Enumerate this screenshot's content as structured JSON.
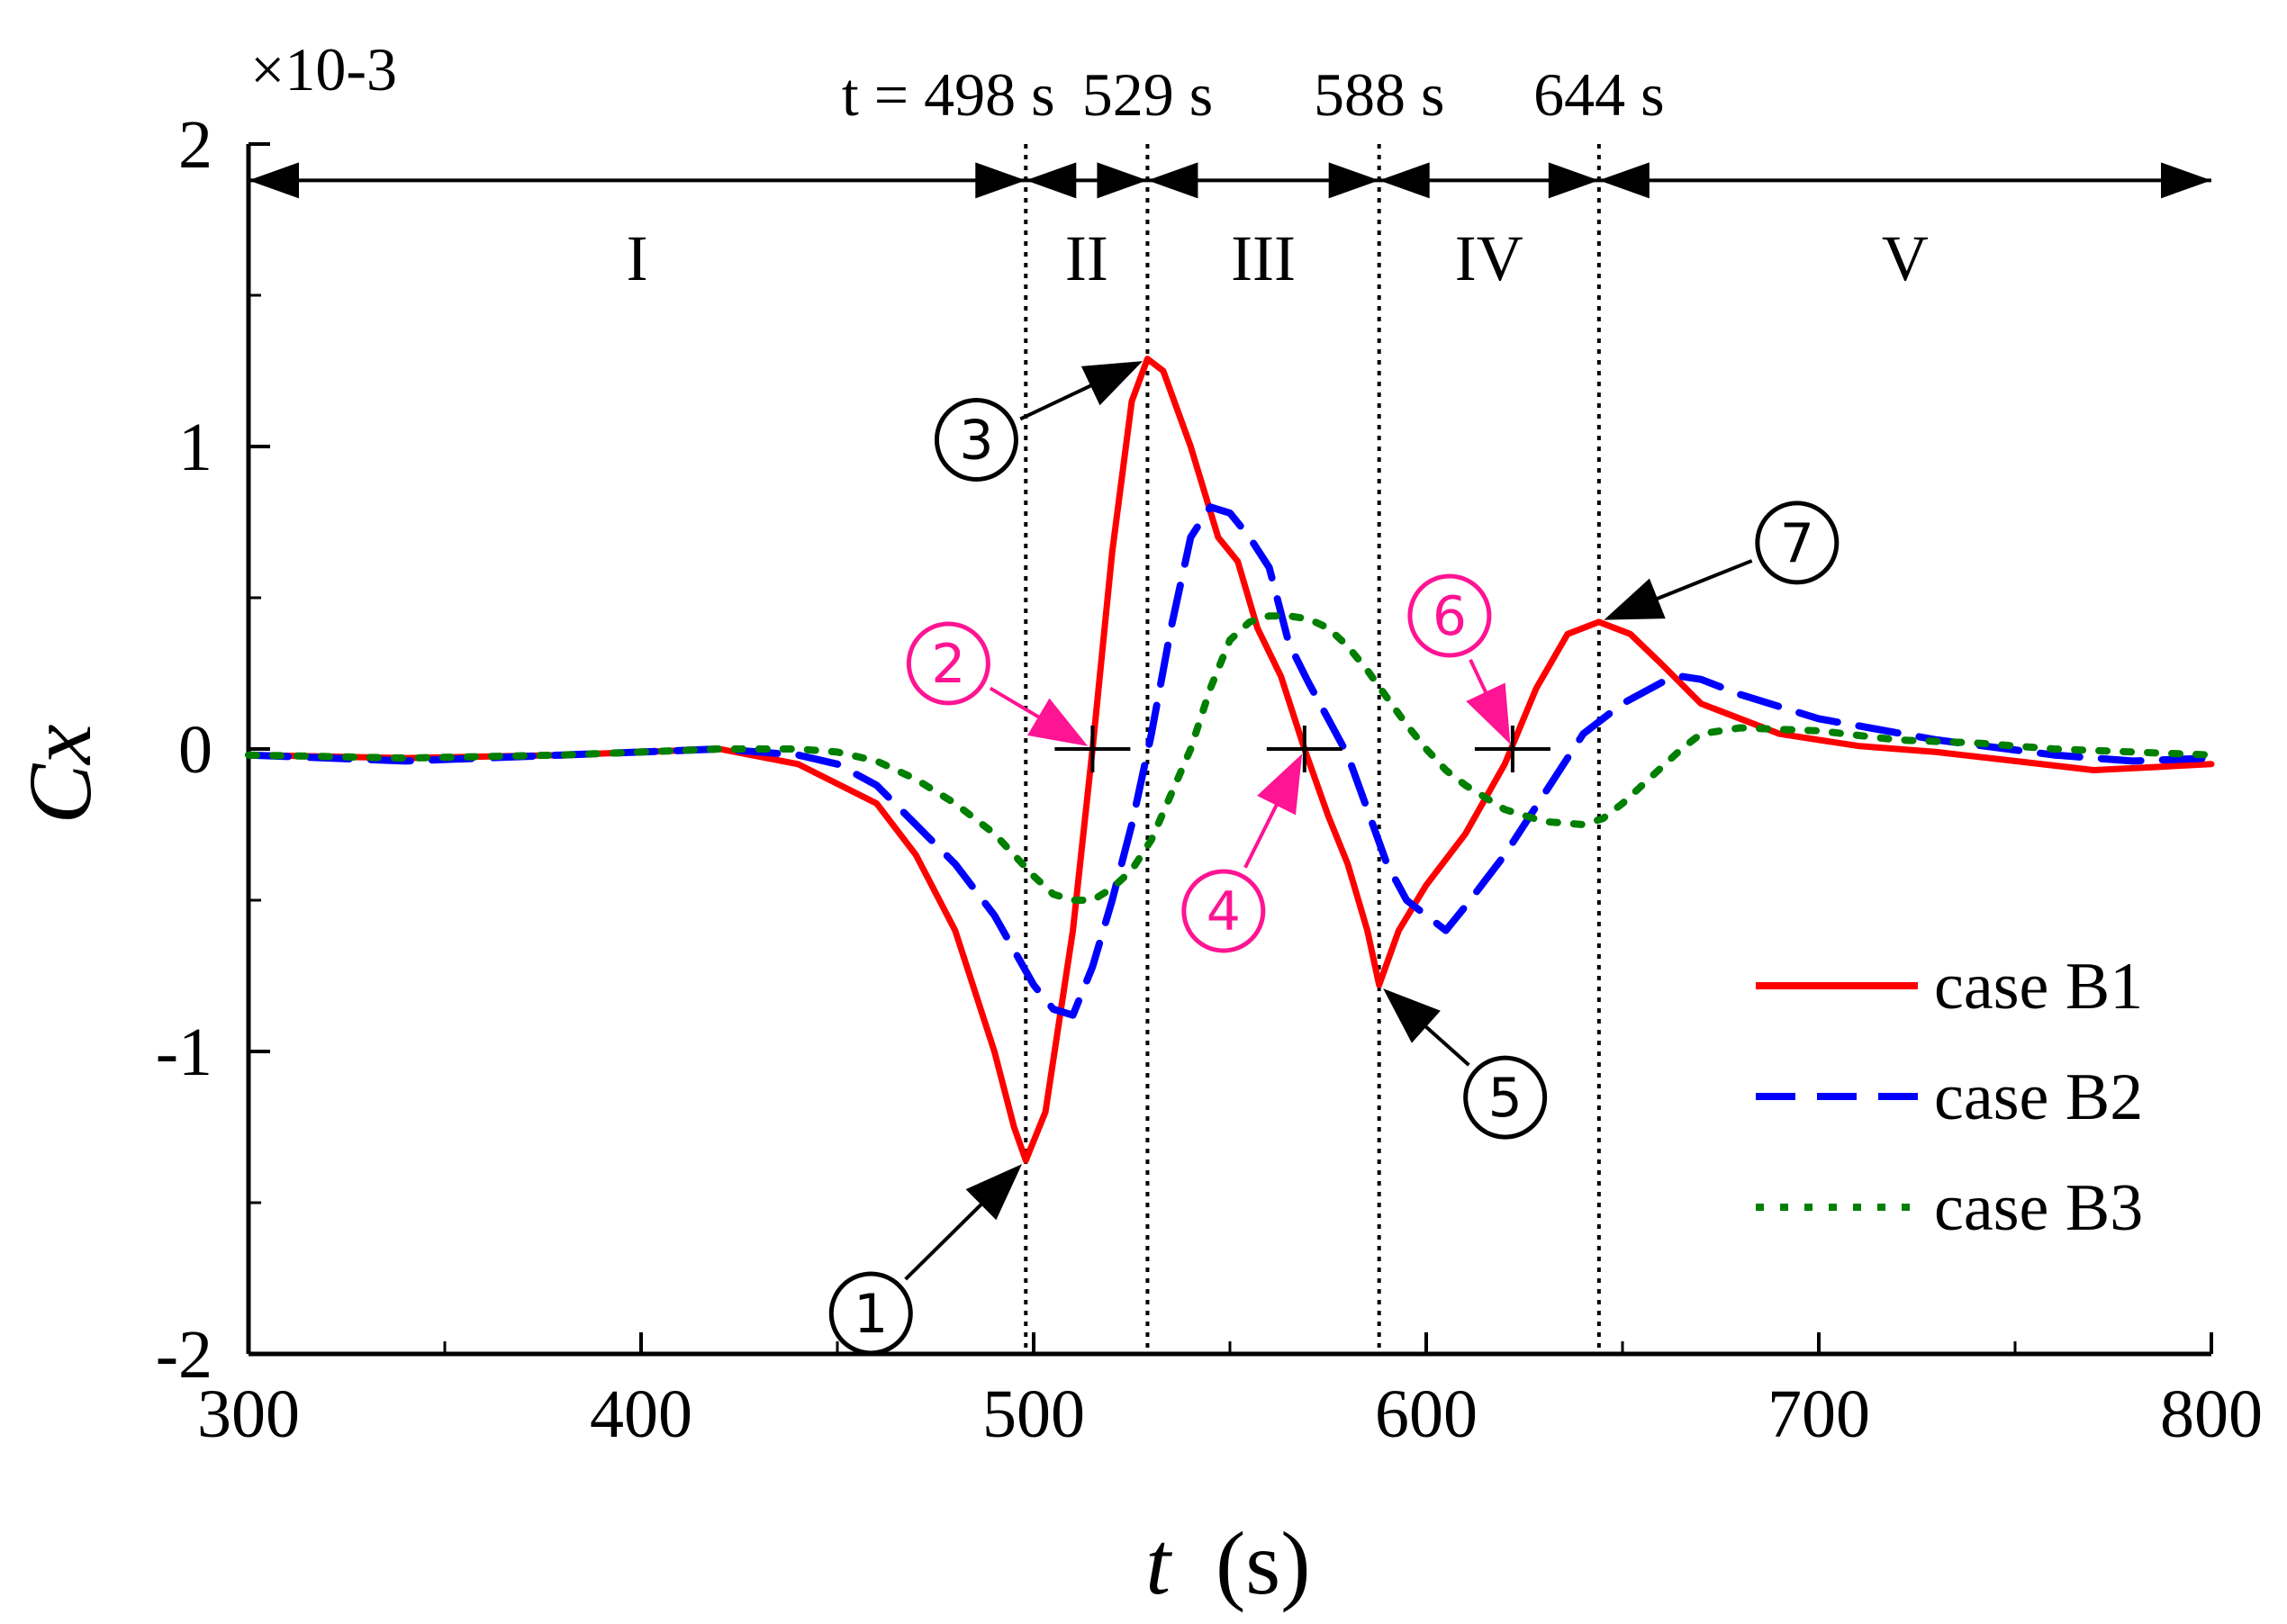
{
  "chart_data": {
    "type": "line",
    "xlabel": "t",
    "xlabel_unit": "(s)",
    "ylabel": "Cx",
    "y_exponent_label": "×10-3",
    "xlim": [
      300,
      800
    ],
    "ylim": [
      -2,
      2
    ],
    "x_ticks": [
      300,
      400,
      500,
      600,
      700,
      800
    ],
    "y_ticks": [
      -2,
      -1,
      0,
      1,
      2
    ],
    "x_tick_labels": [
      "300",
      "400",
      "500",
      "600",
      "700",
      "800"
    ],
    "y_tick_labels": [
      "-2",
      "-1",
      "0",
      "1",
      "2"
    ],
    "vertical_lines": [
      {
        "x": 498,
        "label": "t = 498 s"
      },
      {
        "x": 529,
        "label": "529 s"
      },
      {
        "x": 588,
        "label": "588 s"
      },
      {
        "x": 644,
        "label": "644 s"
      }
    ],
    "phases": [
      {
        "label": "I",
        "from": 300,
        "to": 498
      },
      {
        "label": "II",
        "from": 498,
        "to": 529
      },
      {
        "label": "III",
        "from": 529,
        "to": 588
      },
      {
        "label": "IV",
        "from": 588,
        "to": 644
      },
      {
        "label": "V",
        "from": 644,
        "to": 800
      }
    ],
    "series": [
      {
        "name": "case B1",
        "color": "#ff0000",
        "style": "solid",
        "x": [
          300,
          340,
          380,
          400,
          420,
          440,
          460,
          470,
          480,
          490,
          495,
          498,
          503,
          510,
          515,
          520,
          525,
          529,
          533,
          540,
          547,
          552,
          557,
          563,
          569,
          575,
          580,
          585,
          588,
          593,
          600,
          610,
          620,
          628,
          636,
          644,
          652,
          660,
          670,
          690,
          710,
          730,
          750,
          770,
          785,
          800
        ],
        "y": [
          -0.02,
          -0.03,
          -0.02,
          -0.01,
          0.0,
          -0.05,
          -0.18,
          -0.35,
          -0.6,
          -1.0,
          -1.25,
          -1.36,
          -1.2,
          -0.6,
          0.0,
          0.65,
          1.15,
          1.29,
          1.25,
          1.0,
          0.7,
          0.62,
          0.4,
          0.24,
          0.0,
          -0.22,
          -0.38,
          -0.6,
          -0.78,
          -0.6,
          -0.45,
          -0.28,
          -0.05,
          0.2,
          0.38,
          0.42,
          0.38,
          0.28,
          0.15,
          0.05,
          0.01,
          -0.01,
          -0.04,
          -0.07,
          -0.06,
          -0.05
        ]
      },
      {
        "name": "case B2",
        "color": "#0000ff",
        "style": "dashed",
        "x": [
          300,
          340,
          380,
          420,
          440,
          450,
          460,
          470,
          480,
          490,
          500,
          505,
          510,
          515,
          520,
          525,
          530,
          535,
          540,
          545,
          550,
          555,
          560,
          565,
          570,
          575,
          580,
          585,
          590,
          595,
          600,
          605,
          610,
          620,
          630,
          640,
          650,
          660,
          665,
          670,
          680,
          700,
          730,
          760,
          780,
          800
        ],
        "y": [
          -0.02,
          -0.04,
          -0.02,
          0.0,
          -0.02,
          -0.05,
          -0.12,
          -0.25,
          -0.38,
          -0.55,
          -0.78,
          -0.86,
          -0.88,
          -0.72,
          -0.5,
          -0.25,
          0.05,
          0.4,
          0.7,
          0.8,
          0.78,
          0.7,
          0.6,
          0.35,
          0.22,
          0.1,
          -0.02,
          -0.2,
          -0.38,
          -0.5,
          -0.55,
          -0.6,
          -0.52,
          -0.35,
          -0.15,
          0.05,
          0.15,
          0.22,
          0.24,
          0.23,
          0.18,
          0.1,
          0.03,
          -0.02,
          -0.04,
          -0.03
        ]
      },
      {
        "name": "case B3",
        "color": "#007f00",
        "style": "dotted",
        "x": [
          300,
          340,
          380,
          420,
          440,
          450,
          460,
          470,
          480,
          490,
          500,
          505,
          510,
          515,
          520,
          525,
          530,
          535,
          540,
          545,
          550,
          555,
          560,
          565,
          570,
          575,
          580,
          585,
          590,
          595,
          600,
          605,
          610,
          620,
          630,
          640,
          645,
          650,
          655,
          660,
          665,
          670,
          680,
          700,
          720,
          740,
          760,
          800
        ],
        "y": [
          -0.02,
          -0.03,
          -0.02,
          0.0,
          0.0,
          -0.01,
          -0.04,
          -0.1,
          -0.18,
          -0.28,
          -0.42,
          -0.48,
          -0.5,
          -0.5,
          -0.46,
          -0.4,
          -0.3,
          -0.15,
          0.0,
          0.2,
          0.36,
          0.42,
          0.44,
          0.44,
          0.43,
          0.4,
          0.34,
          0.26,
          0.17,
          0.08,
          0.0,
          -0.07,
          -0.12,
          -0.2,
          -0.24,
          -0.25,
          -0.23,
          -0.18,
          -0.12,
          -0.06,
          0.0,
          0.05,
          0.07,
          0.06,
          0.03,
          0.02,
          0.0,
          -0.02
        ]
      }
    ],
    "zero_crossings": [
      {
        "x": 515,
        "y": 0
      },
      {
        "x": 569,
        "y": 0
      },
      {
        "x": 622,
        "y": 0
      }
    ],
    "annotations": [
      {
        "label": "①",
        "color": "#000000",
        "point": {
          "x": 498,
          "y": -1.36
        }
      },
      {
        "label": "②",
        "color": "#ff1493",
        "point": {
          "x": 515,
          "y": 0
        }
      },
      {
        "label": "③",
        "color": "#000000",
        "point": {
          "x": 529,
          "y": 1.29
        }
      },
      {
        "label": "④",
        "color": "#ff1493",
        "point": {
          "x": 569,
          "y": 0
        }
      },
      {
        "label": "⑤",
        "color": "#000000",
        "point": {
          "x": 588,
          "y": -0.78
        }
      },
      {
        "label": "⑥",
        "color": "#ff1493",
        "point": {
          "x": 622,
          "y": 0
        }
      },
      {
        "label": "⑦",
        "color": "#000000",
        "point": {
          "x": 644,
          "y": 0.42
        }
      }
    ],
    "legend": {
      "position": "bottom-right",
      "entries": [
        "case B1",
        "case B2",
        "case B3"
      ]
    }
  }
}
